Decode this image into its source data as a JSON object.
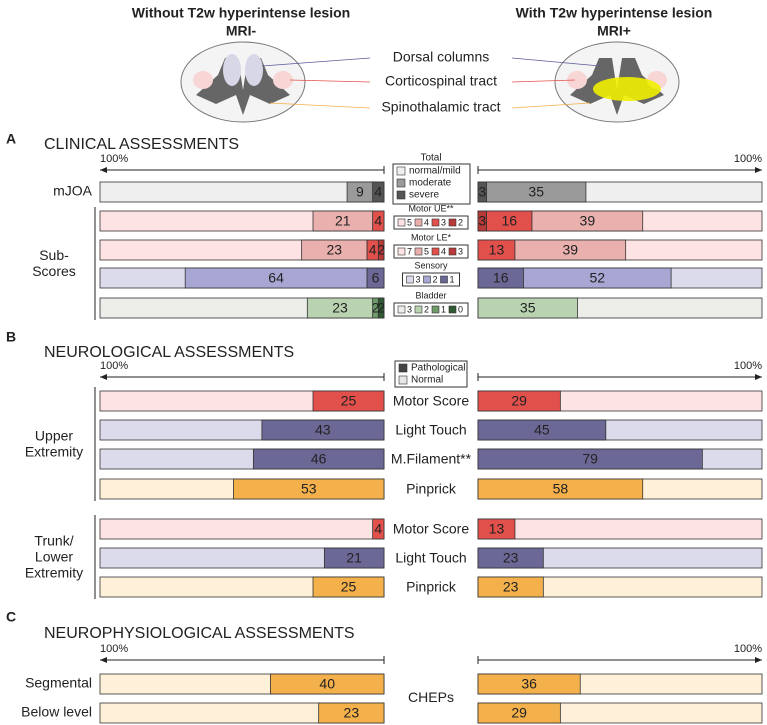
{
  "header": {
    "left_title": "Without T2w hyperintense lesion",
    "left_subtitle": "MRI-",
    "right_title": "With T2w hyperintense lesion",
    "right_subtitle": "MRI+",
    "tracts": [
      {
        "name": "Dorsal columns",
        "color": "#5b5a9c"
      },
      {
        "name": "Corticospinal tract",
        "color": "#e2504c"
      },
      {
        "name": "Spinothalamic tract",
        "color": "#f3b04b"
      }
    ]
  },
  "chart_data": [
    {
      "type": "bar",
      "label": "A",
      "title": "CLINICAL ASSESSMENTS",
      "axis_labels": [
        "100%",
        "100%"
      ],
      "xlim": [
        0,
        100
      ],
      "groups": [
        {
          "name_lines": [
            "mJOA"
          ],
          "rows": [
            {
              "legend_title": "Total",
              "legend": [
                "normal/mild",
                "moderate",
                "severe"
              ],
              "legend_colors": [
                "#efefef",
                "#9a9a9a",
                "#555555"
              ],
              "background": "#efefef",
              "left": [
                4,
                9
              ],
              "left_colors": [
                "#555555",
                "#9a9a9a"
              ],
              "right": [
                3,
                35
              ],
              "right_colors": [
                "#555555",
                "#9a9a9a"
              ]
            }
          ]
        },
        {
          "name_lines": [
            "Sub-",
            "Scores"
          ],
          "rows": [
            {
              "legend_title": "Motor UE**",
              "title_color": "#e2504c",
              "legend": [
                "5",
                "4",
                "3",
                "2"
              ],
              "legend_colors": [
                "#fde3e3",
                "#e9b0ae",
                "#e2504c",
                "#b83a38"
              ],
              "background": "#fde3e3",
              "left": [
                4,
                21
              ],
              "left_colors": [
                "#e2504c",
                "#e9b0ae"
              ],
              "right": [
                3,
                16,
                39
              ],
              "right_colors": [
                "#b83a38",
                "#e2504c",
                "#e9b0ae"
              ]
            },
            {
              "legend_title": "Motor LE*",
              "title_color": "#e2504c",
              "legend": [
                "7",
                "5",
                "4",
                "3"
              ],
              "legend_colors": [
                "#fde3e3",
                "#e9b0ae",
                "#e2504c",
                "#b83a38"
              ],
              "background": "#fde3e3",
              "left": [
                2,
                4,
                23
              ],
              "left_colors": [
                "#b83a38",
                "#e2504c",
                "#e9b0ae"
              ],
              "right": [
                13,
                39
              ],
              "right_colors": [
                "#e2504c",
                "#e9b0ae"
              ]
            },
            {
              "legend_title": "Sensory",
              "title_color": "#5b5a9c",
              "legend": [
                "3",
                "2",
                "1"
              ],
              "legend_colors": [
                "#dcdbeb",
                "#a8a6d3",
                "#6b6896"
              ],
              "background": "#dcdbeb",
              "left": [
                6,
                64
              ],
              "left_colors": [
                "#6b6896",
                "#a8a6d3"
              ],
              "right": [
                16,
                52
              ],
              "right_colors": [
                "#6b6896",
                "#a8a6d3"
              ]
            },
            {
              "legend_title": "Bladder",
              "title_color": "#4f7f4f",
              "legend": [
                "3",
                "2",
                "1",
                "0"
              ],
              "legend_colors": [
                "#edeeea",
                "#b9d3b0",
                "#6f9a6a",
                "#2f5a33"
              ],
              "background": "#edeeea",
              "left": [
                2,
                2,
                23
              ],
              "left_colors": [
                "#2f5a33",
                "#6f9a6a",
                "#b9d3b0"
              ],
              "right": [
                35
              ],
              "right_colors": [
                "#b9d3b0"
              ]
            }
          ]
        }
      ]
    },
    {
      "type": "bar",
      "label": "B",
      "title": "NEUROLOGICAL ASSESSMENTS",
      "axis_labels": [
        "100%",
        "100%"
      ],
      "xlim": [
        0,
        100
      ],
      "legend": [
        "Pathological",
        "Normal"
      ],
      "legend_colors": [
        "#444444",
        "#e6e6e6"
      ],
      "groups": [
        {
          "name_lines": [
            "Upper",
            "Extremity"
          ],
          "rows": [
            {
              "center_label": "Motor Score",
              "label_color": "#e2504c",
              "background": "#fde3e3",
              "left": [
                25
              ],
              "left_colors": [
                "#e2504c"
              ],
              "right": [
                29
              ],
              "right_colors": [
                "#e2504c"
              ]
            },
            {
              "center_label": "Light Touch",
              "label_color": "#5b5a9c",
              "background": "#dcdbeb",
              "left": [
                43
              ],
              "left_colors": [
                "#6b6896"
              ],
              "right": [
                45
              ],
              "right_colors": [
                "#6b6896"
              ]
            },
            {
              "center_label": "M.Filament**",
              "label_color": "#5b5a9c",
              "background": "#dcdbeb",
              "left": [
                46
              ],
              "left_colors": [
                "#6b6896"
              ],
              "right": [
                79
              ],
              "right_colors": [
                "#6b6896"
              ]
            },
            {
              "center_label": "Pinprick",
              "label_color": "#f3b04b",
              "background": "#fff1d9",
              "left": [
                53
              ],
              "left_colors": [
                "#f3b04b"
              ],
              "right": [
                58
              ],
              "right_colors": [
                "#f3b04b"
              ]
            }
          ]
        },
        {
          "name_lines": [
            "Trunk/",
            "Lower",
            "Extremity"
          ],
          "rows": [
            {
              "center_label": "Motor Score",
              "label_color": "#e2504c",
              "background": "#fde3e3",
              "left": [
                4
              ],
              "left_colors": [
                "#e2504c"
              ],
              "right": [
                13
              ],
              "right_colors": [
                "#e2504c"
              ]
            },
            {
              "center_label": "Light Touch",
              "label_color": "#5b5a9c",
              "background": "#dcdbeb",
              "left": [
                21
              ],
              "left_colors": [
                "#6b6896"
              ],
              "right": [
                23
              ],
              "right_colors": [
                "#6b6896"
              ]
            },
            {
              "center_label": "Pinprick",
              "label_color": "#f3b04b",
              "background": "#fff1d9",
              "left": [
                25
              ],
              "left_colors": [
                "#f3b04b"
              ],
              "right": [
                23
              ],
              "right_colors": [
                "#f3b04b"
              ]
            }
          ]
        }
      ]
    },
    {
      "type": "bar",
      "label": "C",
      "title": "NEUROPHYSIOLOGICAL ASSESSMENTS",
      "axis_labels": [
        "100%",
        "100%"
      ],
      "xlim": [
        0,
        100
      ],
      "center_label": "CHEPs",
      "label_color": "#f3b04b",
      "groups": [
        {
          "name_lines": [
            "Segmental"
          ],
          "rows": [
            {
              "background": "#fff1d9",
              "left": [
                40
              ],
              "left_colors": [
                "#f3b04b"
              ],
              "right": [
                36
              ],
              "right_colors": [
                "#f3b04b"
              ]
            }
          ]
        },
        {
          "name_lines": [
            "Below level"
          ],
          "rows": [
            {
              "background": "#fff1d9",
              "left": [
                23
              ],
              "left_colors": [
                "#f3b04b"
              ],
              "right": [
                29
              ],
              "right_colors": [
                "#f3b04b"
              ]
            }
          ]
        }
      ]
    }
  ]
}
